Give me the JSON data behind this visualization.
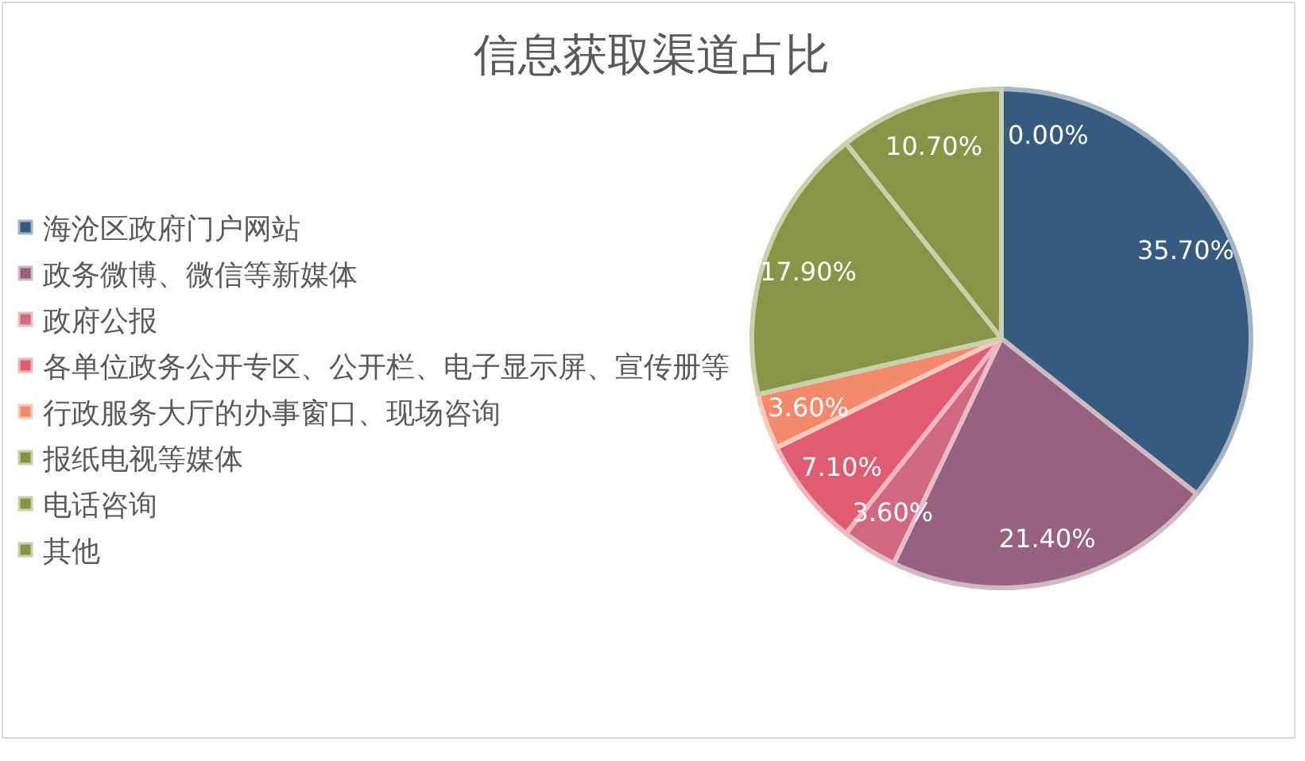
{
  "chart_data": {
    "type": "pie",
    "title": "信息获取渠道占比",
    "categories": [
      "海沧区政府门户网站",
      "政务微博、微信等新媒体",
      "政府公报",
      "各单位政务公开专区、公开栏、电子显示屏、宣传册等",
      "行政服务大厅的办事窗口、现场咨询",
      "报纸电视等媒体",
      "电话咨询",
      "其他"
    ],
    "values": [
      35.7,
      21.4,
      3.6,
      7.1,
      3.6,
      17.9,
      10.7,
      0.0
    ],
    "colors": [
      "#375a7f",
      "#96627f",
      "#cf6a82",
      "#e05c70",
      "#f4896b",
      "#879646",
      "#879646",
      "#879646"
    ],
    "value_labels": [
      "35.70%",
      "21.40%",
      "3.60%",
      "7.10%",
      "3.60%",
      "17.90%",
      "10.70%",
      "0.00%"
    ],
    "legend": "left"
  }
}
